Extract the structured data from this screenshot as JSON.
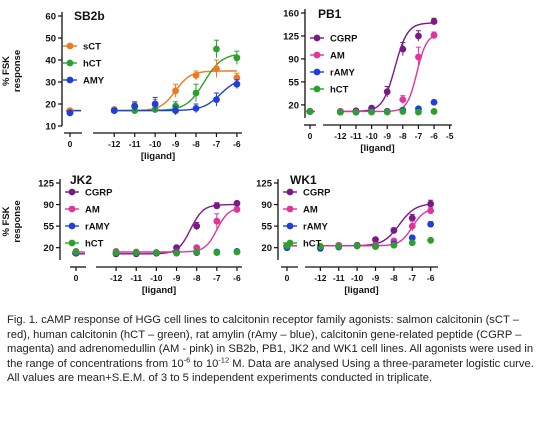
{
  "colors": {
    "sCT": "#f07820",
    "hCT": "#2ca02c",
    "AMY": "#1f3fdd",
    "CGRP": "#7a1a86",
    "AM": "#e0359b"
  },
  "shared": {
    "ylabel": "% FSK\nresponse",
    "xlabel": "[ligand]"
  },
  "chart_data": [
    {
      "type": "scatter",
      "title": "SB2b",
      "ylim": [
        10,
        60
      ],
      "yticks": [
        "10",
        "20",
        "30",
        "40",
        "50",
        "60"
      ],
      "xticks": [
        "0",
        "-12",
        "-11",
        "-10",
        "-9",
        "-8",
        "-7",
        "-6"
      ],
      "xlabel": "[ligand]",
      "ylabel": "% FSK\nresponse",
      "legend": "top-left",
      "series": [
        {
          "name": "sCT",
          "color": "#f07820",
          "x": [
            0,
            -12,
            -11,
            -10,
            -9,
            -8,
            -7,
            -6
          ],
          "y": [
            17,
            17.5,
            19,
            20,
            26,
            33,
            36,
            32
          ],
          "err": [
            1,
            1,
            1.5,
            2,
            3,
            2,
            4,
            2
          ],
          "fit": {
            "bottom": 17,
            "top": 35,
            "logEC50": -9.0,
            "hill": 1.2
          }
        },
        {
          "name": "hCT",
          "color": "#2ca02c",
          "x": [
            0,
            -12,
            -11,
            -10,
            -9,
            -8,
            -7,
            -6
          ],
          "y": [
            16,
            17,
            17,
            17.5,
            19,
            25,
            45,
            41
          ],
          "err": [
            1,
            1,
            1,
            1.5,
            2,
            4,
            4,
            3
          ],
          "fit": {
            "bottom": 17,
            "top": 43,
            "logEC50": -7.6,
            "hill": 1.0
          }
        },
        {
          "name": "AMY",
          "color": "#1f3fdd",
          "x": [
            0,
            -12,
            -11,
            -10,
            -9,
            -8,
            -7,
            -6
          ],
          "y": [
            16,
            17,
            19,
            20,
            17,
            18,
            22,
            29
          ],
          "err": [
            1,
            1,
            2,
            3,
            2,
            2,
            3,
            2
          ],
          "fit": {
            "bottom": 17,
            "top": 32,
            "logEC50": -6.8,
            "hill": 1.0
          }
        }
      ]
    },
    {
      "type": "scatter",
      "title": "PB1",
      "ylim": [
        0,
        160
      ],
      "yticks": [
        "20",
        "55",
        "90",
        "125",
        "160"
      ],
      "xticks": [
        "0",
        "-12",
        "-11",
        "-10",
        "-9",
        "-8",
        "-7",
        "-6",
        "-5"
      ],
      "xlabel": "[ligand]",
      "ylabel": "",
      "legend": "top-left",
      "series": [
        {
          "name": "CGRP",
          "color": "#7a1a86",
          "x": [
            0,
            -12,
            -11,
            -10,
            -9,
            -8,
            -7,
            -6
          ],
          "y": [
            10,
            10,
            11,
            15,
            40,
            105,
            125,
            147
          ],
          "err": [
            2,
            1,
            2,
            3,
            8,
            10,
            8,
            5
          ],
          "fit": {
            "bottom": 10,
            "top": 145,
            "logEC50": -8.5,
            "hill": 1.1
          }
        },
        {
          "name": "AM",
          "color": "#e0359b",
          "x": [
            0,
            -12,
            -11,
            -10,
            -9,
            -8,
            -7,
            -6
          ],
          "y": [
            10,
            10,
            9,
            10,
            10,
            28,
            93,
            126
          ],
          "err": [
            2,
            1,
            1,
            1,
            2,
            6,
            15,
            5
          ],
          "fit": {
            "bottom": 10,
            "top": 128,
            "logEC50": -7.1,
            "hill": 1.4
          }
        },
        {
          "name": "rAMY",
          "color": "#1f3fdd",
          "x": [
            0,
            -12,
            -11,
            -10,
            -9,
            -8,
            -7,
            -6
          ],
          "y": [
            10,
            9,
            9,
            10,
            10,
            12,
            14,
            24
          ],
          "err": [
            1,
            1,
            1,
            1,
            1,
            1,
            2,
            2
          ]
        },
        {
          "name": "hCT",
          "color": "#2ca02c",
          "x": [
            0,
            -12,
            -11,
            -10,
            -9,
            -8,
            -7,
            -6
          ],
          "y": [
            10,
            9,
            9,
            9,
            9,
            10,
            9,
            10
          ],
          "err": [
            1,
            1,
            1,
            1,
            1,
            1,
            1,
            1
          ]
        }
      ]
    },
    {
      "type": "scatter",
      "title": "JK2",
      "ylim": [
        0,
        125
      ],
      "yticks": [
        "20",
        "55",
        "90",
        "125"
      ],
      "xticks": [
        "0",
        "-12",
        "-11",
        "-10",
        "-9",
        "-8",
        "-7",
        "-6"
      ],
      "xlabel": "[ligand]",
      "ylabel": "% FSK\nresponse",
      "legend": "top-left",
      "series": [
        {
          "name": "CGRP",
          "color": "#7a1a86",
          "x": [
            0,
            -12,
            -11,
            -10,
            -9,
            -8,
            -7,
            -6
          ],
          "y": [
            11,
            10,
            10,
            11,
            20,
            55,
            88,
            92
          ],
          "err": [
            2,
            1,
            1,
            2,
            3,
            6,
            5,
            3
          ],
          "fit": {
            "bottom": 10,
            "top": 90,
            "logEC50": -8.3,
            "hill": 1.4
          }
        },
        {
          "name": "AM",
          "color": "#e0359b",
          "x": [
            0,
            -12,
            -11,
            -10,
            -9,
            -8,
            -7,
            -6
          ],
          "y": [
            14,
            14,
            13,
            12,
            13,
            20,
            63,
            82
          ],
          "err": [
            2,
            1,
            1,
            1,
            1,
            3,
            12,
            4
          ],
          "fit": {
            "bottom": 13,
            "top": 85,
            "logEC50": -7.0,
            "hill": 1.5
          }
        },
        {
          "name": "rAMY",
          "color": "#1f3fdd",
          "x": [
            0,
            -12,
            -11,
            -10,
            -9,
            -8,
            -7,
            -6
          ],
          "y": [
            11,
            11,
            11,
            12,
            12,
            12,
            13,
            14
          ],
          "err": [
            1,
            1,
            1,
            1,
            1,
            1,
            1,
            1
          ]
        },
        {
          "name": "hCT",
          "color": "#2ca02c",
          "x": [
            0,
            -12,
            -11,
            -10,
            -9,
            -8,
            -7,
            -6
          ],
          "y": [
            13,
            12,
            12,
            12,
            11,
            13,
            12,
            13
          ],
          "err": [
            1,
            1,
            1,
            1,
            1,
            1,
            1,
            1
          ]
        }
      ]
    },
    {
      "type": "scatter",
      "title": "WK1",
      "ylim": [
        0,
        125
      ],
      "yticks": [
        "20",
        "55",
        "90",
        "125"
      ],
      "xticks": [
        "0",
        "-12",
        "-11",
        "-10",
        "-9",
        "-8",
        "-7",
        "-6"
      ],
      "xlabel": "[ligand]",
      "ylabel": "",
      "legend": "top-left",
      "series": [
        {
          "name": "CGRP",
          "color": "#7a1a86",
          "x": [
            0,
            -12,
            -11,
            -10,
            -9,
            -8,
            -7,
            -6
          ],
          "y": [
            22,
            20,
            22,
            24,
            33,
            48,
            68,
            91
          ],
          "err": [
            2,
            1,
            2,
            2,
            3,
            4,
            6,
            6
          ],
          "fit": {
            "bottom": 23,
            "top": 92,
            "logEC50": -7.7,
            "hill": 1.0
          }
        },
        {
          "name": "AM",
          "color": "#e0359b",
          "x": [
            0,
            -12,
            -11,
            -10,
            -9,
            -8,
            -7,
            -6
          ],
          "y": [
            23,
            22,
            24,
            23,
            24,
            31,
            55,
            80
          ],
          "err": [
            2,
            1,
            1,
            1,
            2,
            3,
            8,
            5
          ],
          "fit": {
            "bottom": 23,
            "top": 84,
            "logEC50": -7.0,
            "hill": 1.3
          }
        },
        {
          "name": "rAMY",
          "color": "#1f3fdd",
          "x": [
            0,
            -12,
            -11,
            -10,
            -9,
            -8,
            -7,
            -6
          ],
          "y": [
            20,
            19,
            21,
            23,
            22,
            26,
            36,
            58
          ],
          "err": [
            1,
            1,
            1,
            1,
            1,
            2,
            3,
            4
          ]
        },
        {
          "name": "hCT",
          "color": "#2ca02c",
          "x": [
            0,
            -12,
            -11,
            -10,
            -9,
            -8,
            -7,
            -6
          ],
          "y": [
            23,
            22,
            22,
            23,
            22,
            24,
            28,
            32
          ],
          "err": [
            1,
            1,
            1,
            1,
            1,
            1,
            2,
            2
          ]
        }
      ]
    }
  ],
  "caption": {
    "part1": "Fig. 1. cAMP response of HGG cell lines to calcitonin receptor family agonists: salmon calcitonin (sCT – red), human calcitonin (hCT – green), rat amylin (rAmy – blue), calcitonin gene-related peptide (CGRP – magenta) and adrenomedullin (AM - pink) in SB2b, PB1, JK2 and WK1 cell lines. All agonists were used in the range of concentrations from 10",
    "sup1": "-6",
    "part2": " to 10",
    "sup2": "-12",
    "part3": " M. Data are analysed Using a three-parameter  logistic curve. All values are mean+S.E.M. of 3 to 5 independent experiments conducted in triplicate."
  }
}
